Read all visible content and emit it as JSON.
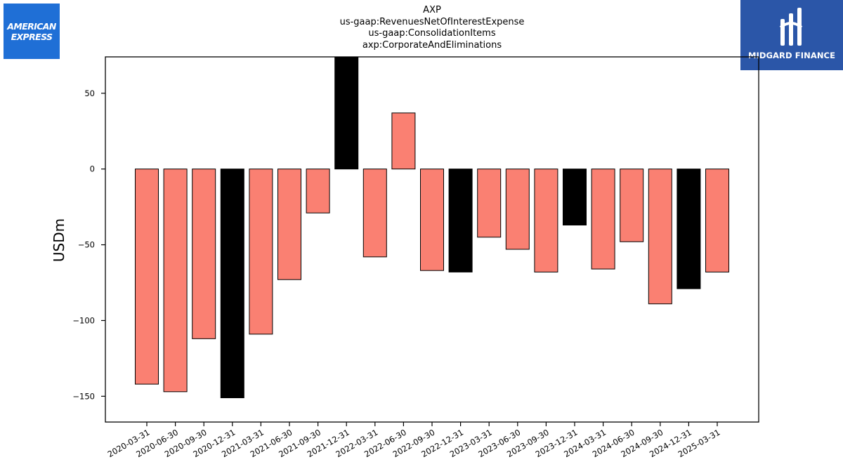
{
  "logos": {
    "left": {
      "line1": "AMERICAN",
      "line2": "EXPRESS",
      "color": "#1f6fd6"
    },
    "right": {
      "name": "MIDGARD FINANCE",
      "color": "#2b56a8"
    }
  },
  "chart_data": {
    "type": "bar",
    "title": [
      "AXP",
      "us-gaap:RevenuesNetOfInterestExpense",
      "us-gaap:ConsolidationItems",
      "axp:CorporateAndEliminations"
    ],
    "xlabel": "",
    "ylabel": "USDm",
    "ylim": [
      -167,
      74
    ],
    "yticks": [
      50,
      0,
      -50,
      -100,
      -150
    ],
    "grid": false,
    "categories": [
      "2020-03-31",
      "2020-06-30",
      "2020-09-30",
      "2020-12-31",
      "2021-03-31",
      "2021-06-30",
      "2021-09-30",
      "2021-12-31",
      "2022-03-31",
      "2022-06-30",
      "2022-09-30",
      "2022-12-31",
      "2023-03-31",
      "2023-06-30",
      "2023-09-30",
      "2023-12-31",
      "2024-03-31",
      "2024-06-30",
      "2024-09-30",
      "2024-12-31",
      "2025-03-31"
    ],
    "values": [
      -142,
      -147,
      -112,
      -151,
      -109,
      -73,
      -29,
      74,
      -58,
      37,
      -67,
      -68,
      -45,
      -53,
      -68,
      -37,
      -66,
      -48,
      -89,
      -79,
      -68
    ],
    "colors": [
      "#fa8072",
      "#fa8072",
      "#fa8072",
      "#000000",
      "#fa8072",
      "#fa8072",
      "#fa8072",
      "#000000",
      "#fa8072",
      "#fa8072",
      "#fa8072",
      "#000000",
      "#fa8072",
      "#fa8072",
      "#fa8072",
      "#000000",
      "#fa8072",
      "#fa8072",
      "#fa8072",
      "#000000",
      "#fa8072"
    ]
  }
}
